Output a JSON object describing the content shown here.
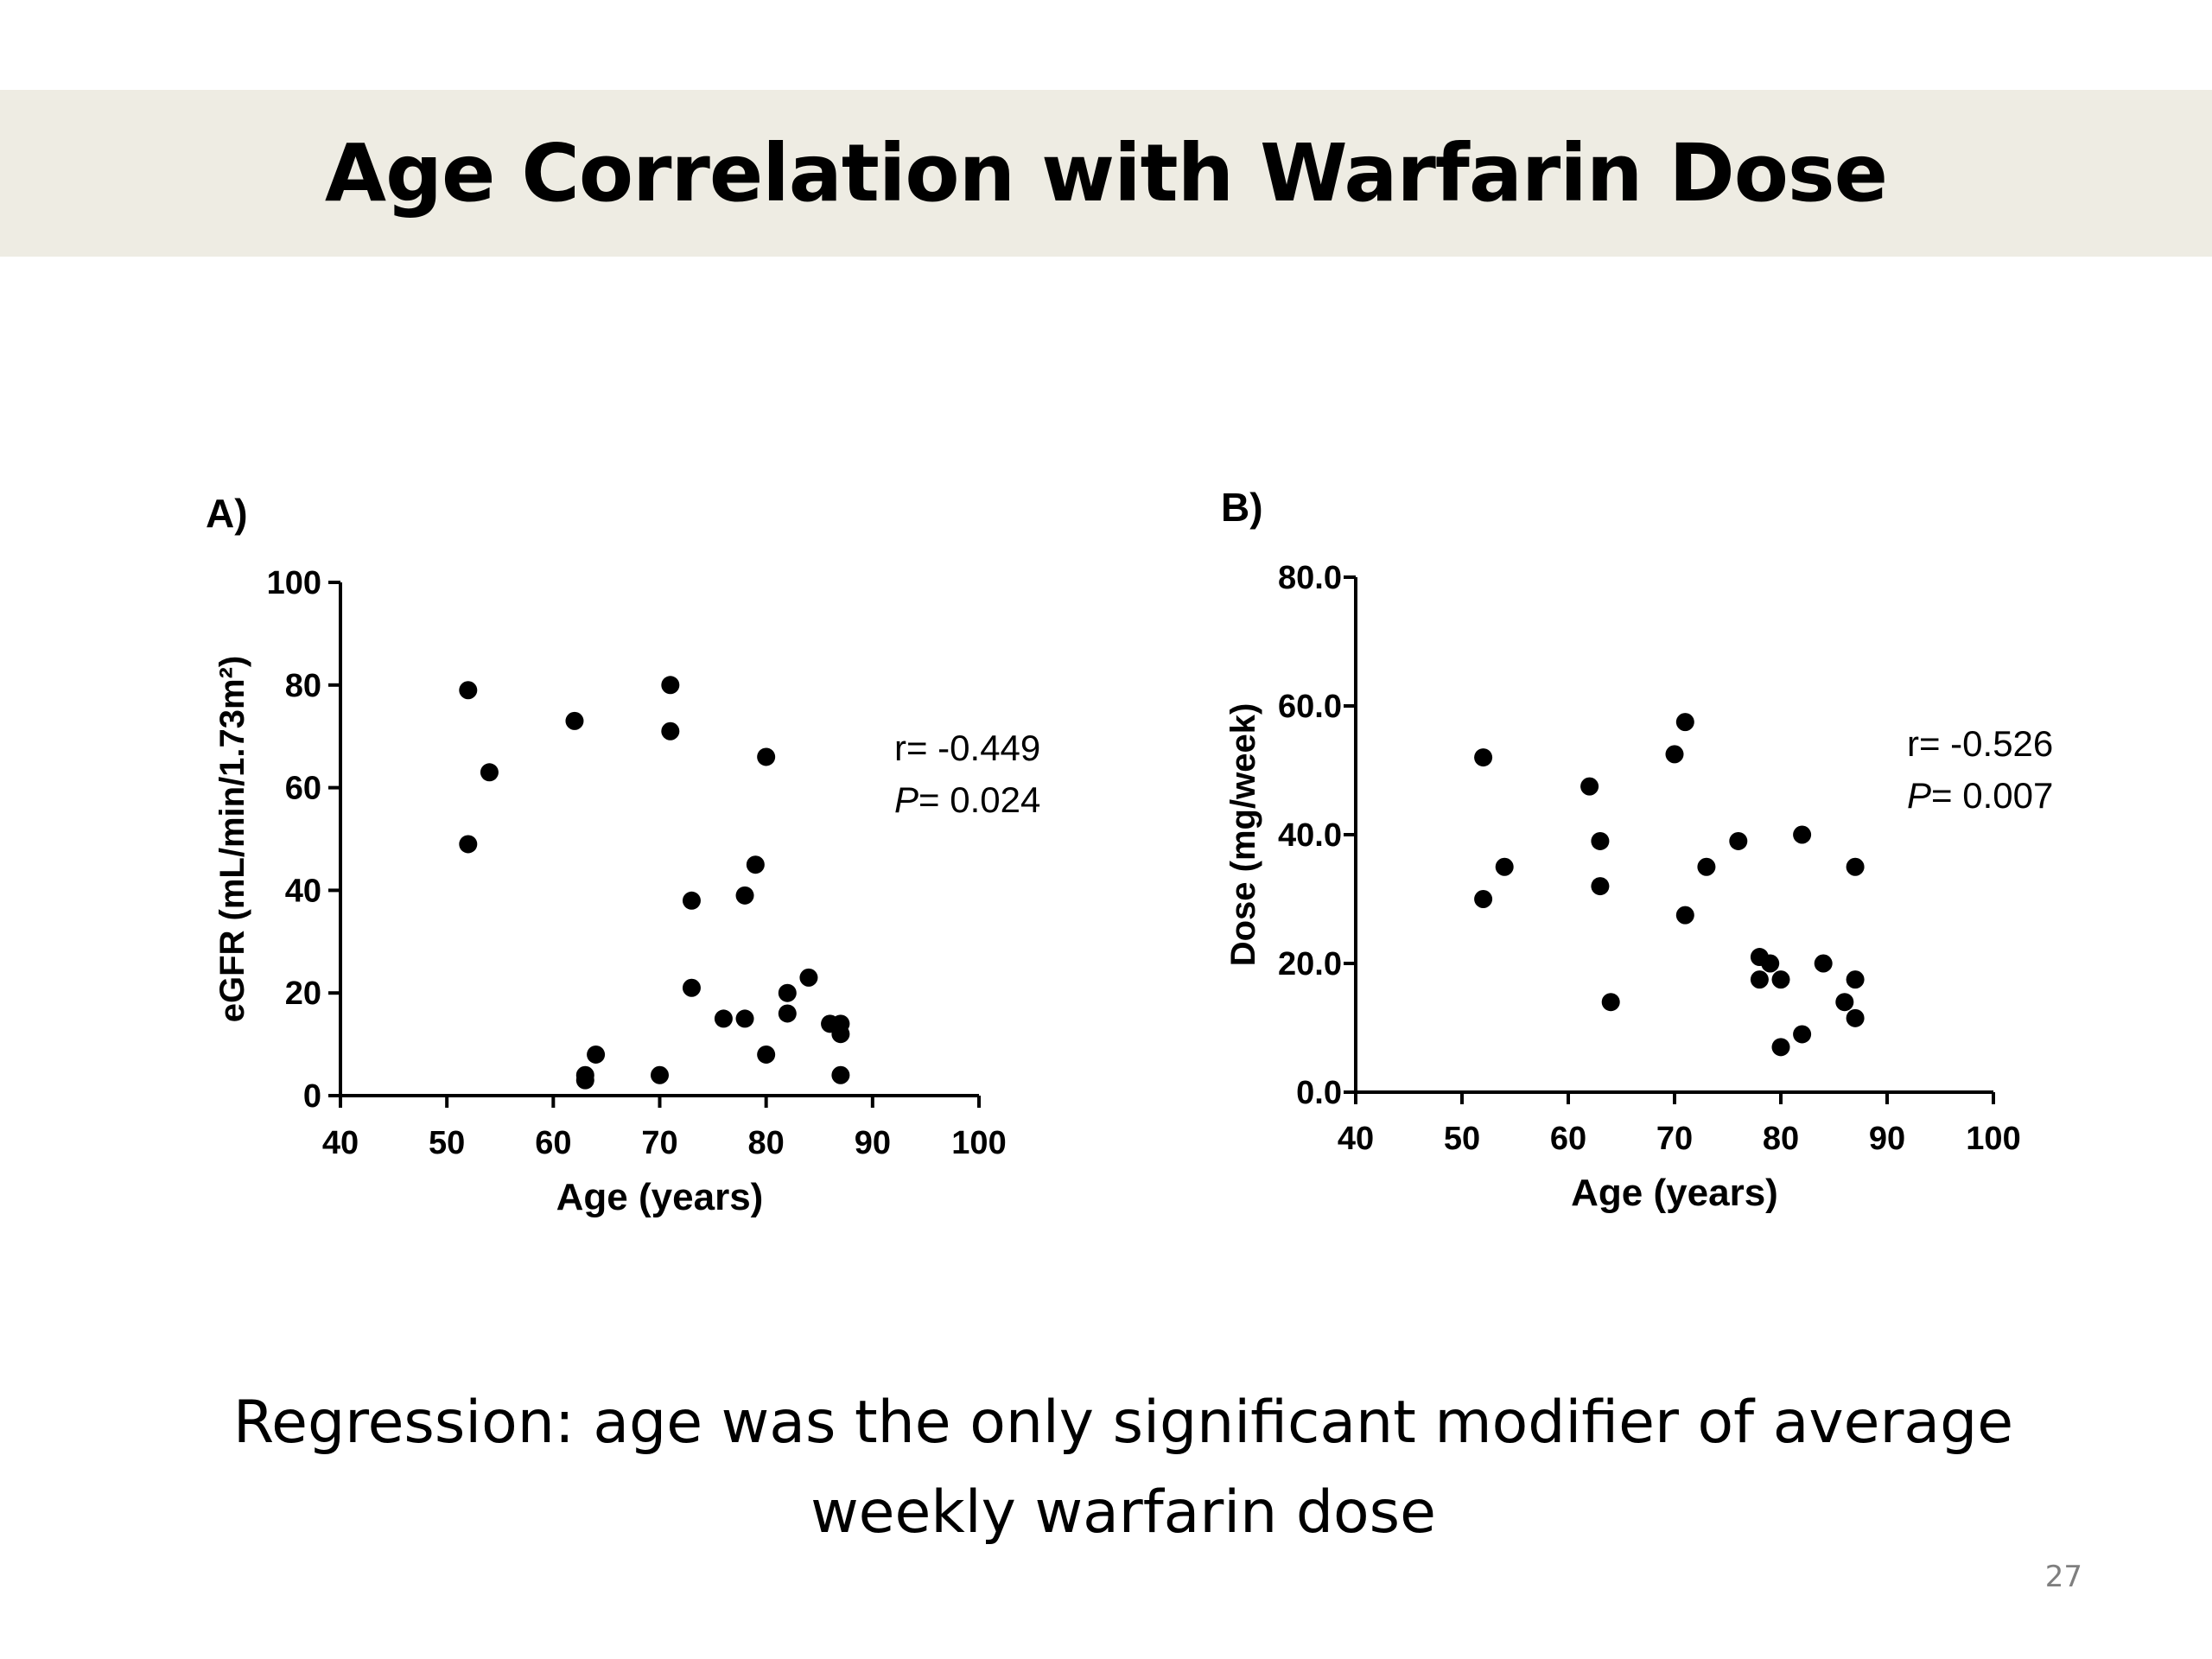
{
  "slide": {
    "title": "Age Correlation with Warfarin Dose",
    "caption_line1": "Regression: age was the only significant modifier of average",
    "caption_line2": "weekly warfarin dose",
    "page_number": "27"
  },
  "chart_data": [
    {
      "type": "scatter",
      "panel_label": "A)",
      "xlabel": "Age (years)",
      "ylabel": "eGFR (mL/min/1.73m²)",
      "xlim": [
        40,
        100
      ],
      "ylim": [
        0,
        100
      ],
      "x_ticks": [
        40,
        50,
        60,
        70,
        80,
        90,
        100
      ],
      "y_ticks": [
        0,
        20,
        40,
        60,
        80,
        100
      ],
      "y_tick_labels": [
        "0",
        "20",
        "40",
        "60",
        "80",
        "100"
      ],
      "stat_r": "r= -0.449",
      "stat_p_italic": "P",
      "stat_p_value": "= 0.024",
      "points": [
        [
          52,
          79
        ],
        [
          52,
          49
        ],
        [
          54,
          63
        ],
        [
          62,
          73
        ],
        [
          63,
          4
        ],
        [
          63,
          3
        ],
        [
          64,
          8
        ],
        [
          70,
          4
        ],
        [
          71,
          80
        ],
        [
          71,
          71
        ],
        [
          73,
          38
        ],
        [
          73,
          21
        ],
        [
          76,
          15
        ],
        [
          78,
          15
        ],
        [
          78,
          39
        ],
        [
          79,
          45
        ],
        [
          80,
          66
        ],
        [
          80,
          8
        ],
        [
          82,
          20
        ],
        [
          82,
          16
        ],
        [
          84,
          23
        ],
        [
          86,
          14
        ],
        [
          87,
          14
        ],
        [
          87,
          12
        ],
        [
          87,
          4
        ]
      ]
    },
    {
      "type": "scatter",
      "panel_label": "B)",
      "xlabel": "Age (years)",
      "ylabel": "Dose (mg/week)",
      "xlim": [
        40,
        100
      ],
      "ylim": [
        0,
        80
      ],
      "x_ticks": [
        40,
        50,
        60,
        70,
        80,
        90,
        100
      ],
      "y_ticks": [
        0,
        20,
        40,
        60,
        80
      ],
      "y_tick_labels": [
        "0.0",
        "20.0",
        "40.0",
        "60.0",
        "80.0"
      ],
      "stat_r": "r= -0.526",
      "stat_p_italic": "P",
      "stat_p_value": "= 0.007",
      "points": [
        [
          52,
          52
        ],
        [
          52,
          30
        ],
        [
          54,
          35
        ],
        [
          62,
          47.5
        ],
        [
          63,
          39
        ],
        [
          63,
          32
        ],
        [
          64,
          14
        ],
        [
          70,
          52.5
        ],
        [
          71,
          57.5
        ],
        [
          71,
          27.5
        ],
        [
          73,
          35
        ],
        [
          76,
          39
        ],
        [
          78,
          21
        ],
        [
          78,
          17.5
        ],
        [
          79,
          20
        ],
        [
          80,
          17.5
        ],
        [
          80,
          7
        ],
        [
          82,
          40
        ],
        [
          82,
          9
        ],
        [
          84,
          20
        ],
        [
          86,
          14
        ],
        [
          87,
          35
        ],
        [
          87,
          17.5
        ],
        [
          87,
          11.5
        ]
      ]
    }
  ]
}
